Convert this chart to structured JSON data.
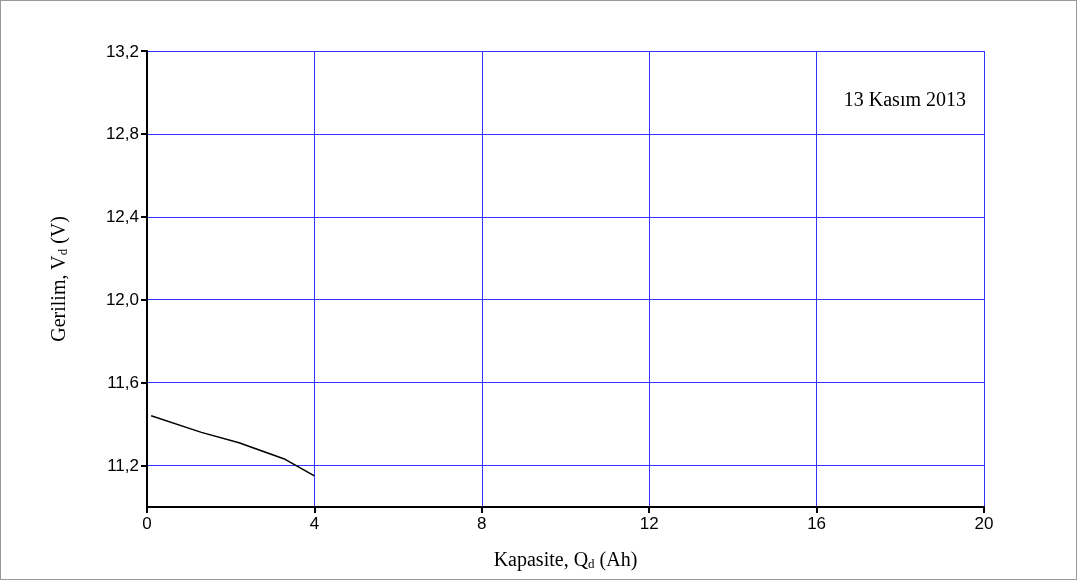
{
  "chart_data": {
    "type": "line",
    "xlabel": "Kapasite, Q$_{d}$ (Ah)",
    "ylabel": "Gerilim, V$_{d}$ (V)",
    "annotations": [
      "13 Kasım 2013"
    ],
    "x": [
      0.1,
      1.3,
      2.2,
      3.3,
      4.0
    ],
    "series": [
      {
        "color": "#000000",
        "values": [
          11.44,
          11.36,
          11.31,
          11.23,
          11.15
        ]
      }
    ],
    "xlim": [
      0,
      20
    ],
    "xticks": [
      0,
      4,
      8,
      12,
      16,
      20
    ],
    "ylim": [
      11.0,
      13.2
    ],
    "yticks": [
      {
        "value": 11.2,
        "label": "11,2"
      },
      {
        "value": 11.6,
        "label": "11,6"
      },
      {
        "value": 12.0,
        "label": "12,0"
      },
      {
        "value": 12.4,
        "label": "12,4"
      },
      {
        "value": 12.8,
        "label": "12,8"
      },
      {
        "value": 13.2,
        "label": "13,2"
      }
    ],
    "grid": true,
    "marker": "none",
    "line_style": "solid"
  }
}
